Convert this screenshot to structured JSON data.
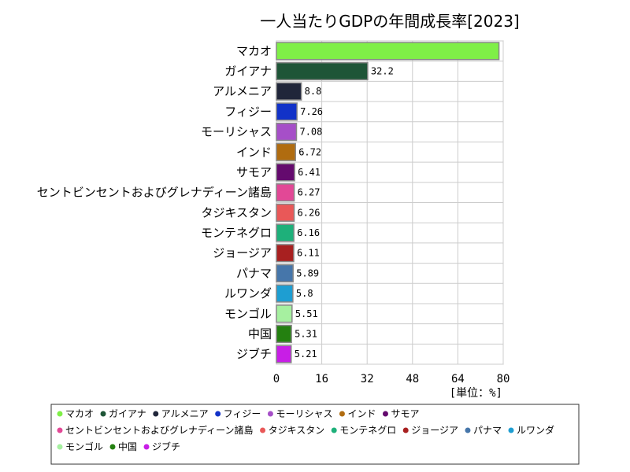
{
  "chart_data": {
    "type": "bar",
    "orientation": "horizontal",
    "title": "一人当たりGDPの年間成長率[2023]",
    "unit_label": "[単位：%]",
    "xlim": [
      0,
      80
    ],
    "x_ticks": [
      "0",
      "16",
      "32",
      "48",
      "64",
      "80"
    ],
    "grid": true,
    "legend_position": "bottom",
    "series": [
      {
        "name": "マカオ",
        "value": 78.5,
        "label": "",
        "color": "#7fef47"
      },
      {
        "name": "ガイアナ",
        "value": 32.2,
        "label": "32.2",
        "color": "#1e5537"
      },
      {
        "name": "アルメニア",
        "value": 8.8,
        "label": "8.8",
        "color": "#20263a"
      },
      {
        "name": "フィジー",
        "value": 7.26,
        "label": "7.26",
        "color": "#1232c8"
      },
      {
        "name": "モーリシャス",
        "value": 7.08,
        "label": "7.08",
        "color": "#a64fc8"
      },
      {
        "name": "インド",
        "value": 6.72,
        "label": "6.72",
        "color": "#b06c10"
      },
      {
        "name": "サモア",
        "value": 6.41,
        "label": "6.41",
        "color": "#640a6e"
      },
      {
        "name": "セントビンセントおよびグレナディーン諸島",
        "value": 6.27,
        "label": "6.27",
        "color": "#e24896"
      },
      {
        "name": "タジキスタン",
        "value": 6.26,
        "label": "6.26",
        "color": "#e95858"
      },
      {
        "name": "モンテネグロ",
        "value": 6.16,
        "label": "6.16",
        "color": "#1eb07a"
      },
      {
        "name": "ジョージア",
        "value": 6.11,
        "label": "6.11",
        "color": "#a82020"
      },
      {
        "name": "パナマ",
        "value": 5.89,
        "label": "5.89",
        "color": "#4676aa"
      },
      {
        "name": "ルワンダ",
        "value": 5.8,
        "label": "5.8",
        "color": "#1e9ed2"
      },
      {
        "name": "モンゴル",
        "value": 5.51,
        "label": "5.51",
        "color": "#a6f0a0"
      },
      {
        "name": "中国",
        "value": 5.31,
        "label": "5.31",
        "color": "#248010"
      },
      {
        "name": "ジブチ",
        "value": 5.21,
        "label": "5.21",
        "color": "#c81ee6"
      }
    ]
  }
}
